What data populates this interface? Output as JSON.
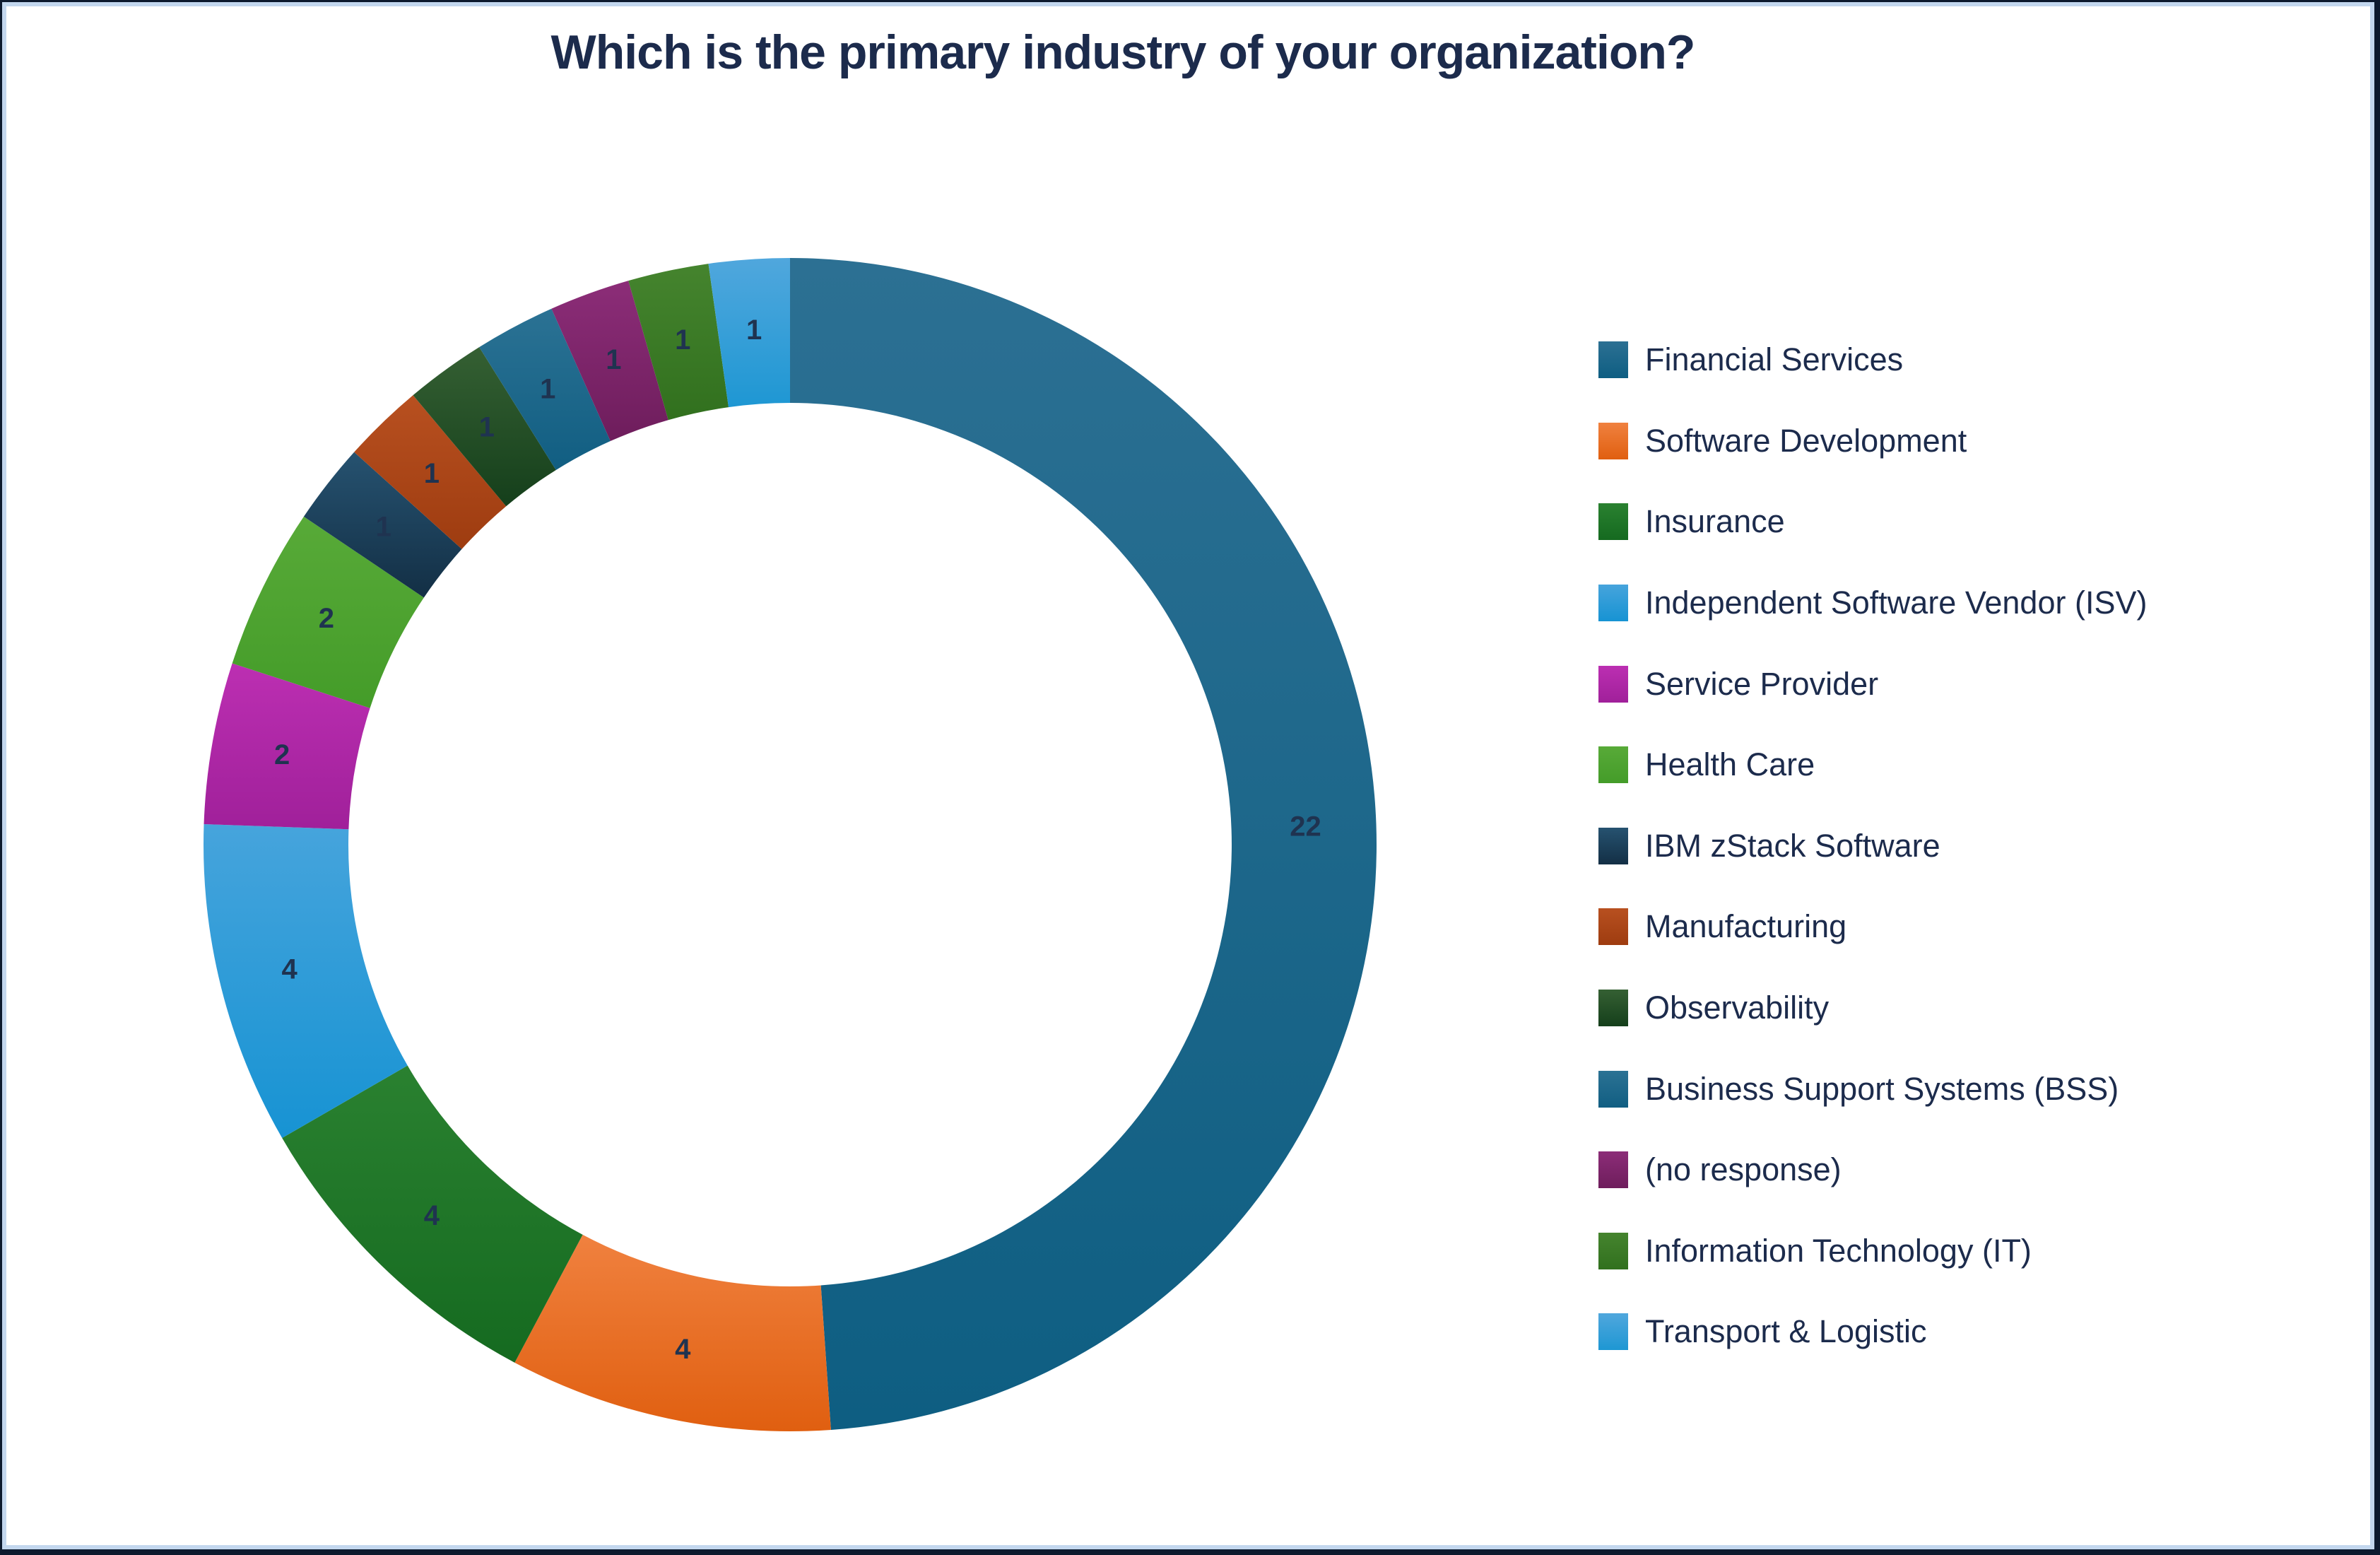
{
  "title": "Which is the primary industry of your organization?",
  "colors": {
    "background": "#ffffff",
    "title_text": "#1c2b4c",
    "legend_text": "#1c2b4c",
    "data_label_text": "#1f3350",
    "border_inner": "#c3d7ee",
    "border_outer": "#0d1a2e"
  },
  "chart_data": {
    "type": "pie",
    "subtype": "donut",
    "title": "Which is the primary industry of your organization?",
    "direction": "clockwise",
    "start_angle_deg": 0,
    "total": 45,
    "data_labels": "values",
    "legend_position": "right",
    "categories": [
      "Financial Services",
      "Software Development",
      "Insurance",
      "Independent Software Vendor (ISV)",
      "Service Provider",
      "Health Care",
      "IBM zStack Software",
      "Manufacturing",
      "Observability",
      "Business Support Systems (BSS)",
      "(no response)",
      "Information Technology (IT)",
      "Transport & Logistic"
    ],
    "values": [
      22,
      4,
      4,
      4,
      2,
      2,
      1,
      1,
      1,
      1,
      1,
      1,
      1
    ],
    "series": [
      {
        "name": "Financial Services",
        "value": 22,
        "color_light": "#2c7093",
        "color_dark": "#0e5e82"
      },
      {
        "name": "Software Development",
        "value": 4,
        "color_light": "#f0813f",
        "color_dark": "#e05f10"
      },
      {
        "name": "Insurance",
        "value": 4,
        "color_light": "#2a8130",
        "color_dark": "#156a20"
      },
      {
        "name": "Independent Software Vendor (ISV)",
        "value": 4,
        "color_light": "#46a4dc",
        "color_dark": "#1793d3"
      },
      {
        "name": "Service Provider",
        "value": 2,
        "color_light": "#bc2fb2",
        "color_dark": "#a0209a"
      },
      {
        "name": "Health Care",
        "value": 2,
        "color_light": "#58aa38",
        "color_dark": "#449c29"
      },
      {
        "name": "IBM zStack Software",
        "value": 1,
        "color_light": "#265270",
        "color_dark": "#132f45"
      },
      {
        "name": "Manufacturing",
        "value": 1,
        "color_light": "#b85020",
        "color_dark": "#9e3c10"
      },
      {
        "name": "Observability",
        "value": 1,
        "color_light": "#356033",
        "color_dark": "#153f1b"
      },
      {
        "name": "Business Support Systems (BSS)",
        "value": 1,
        "color_light": "#2b7294",
        "color_dark": "#115e82"
      },
      {
        "name": "(no response)",
        "value": 1,
        "color_light": "#8c2d78",
        "color_dark": "#6e1d5c"
      },
      {
        "name": "Information Technology (IT)",
        "value": 1,
        "color_light": "#45842e",
        "color_dark": "#31701e"
      },
      {
        "name": "Transport & Logistic",
        "value": 1,
        "color_light": "#50a7dd",
        "color_dark": "#1e97d3"
      }
    ]
  }
}
